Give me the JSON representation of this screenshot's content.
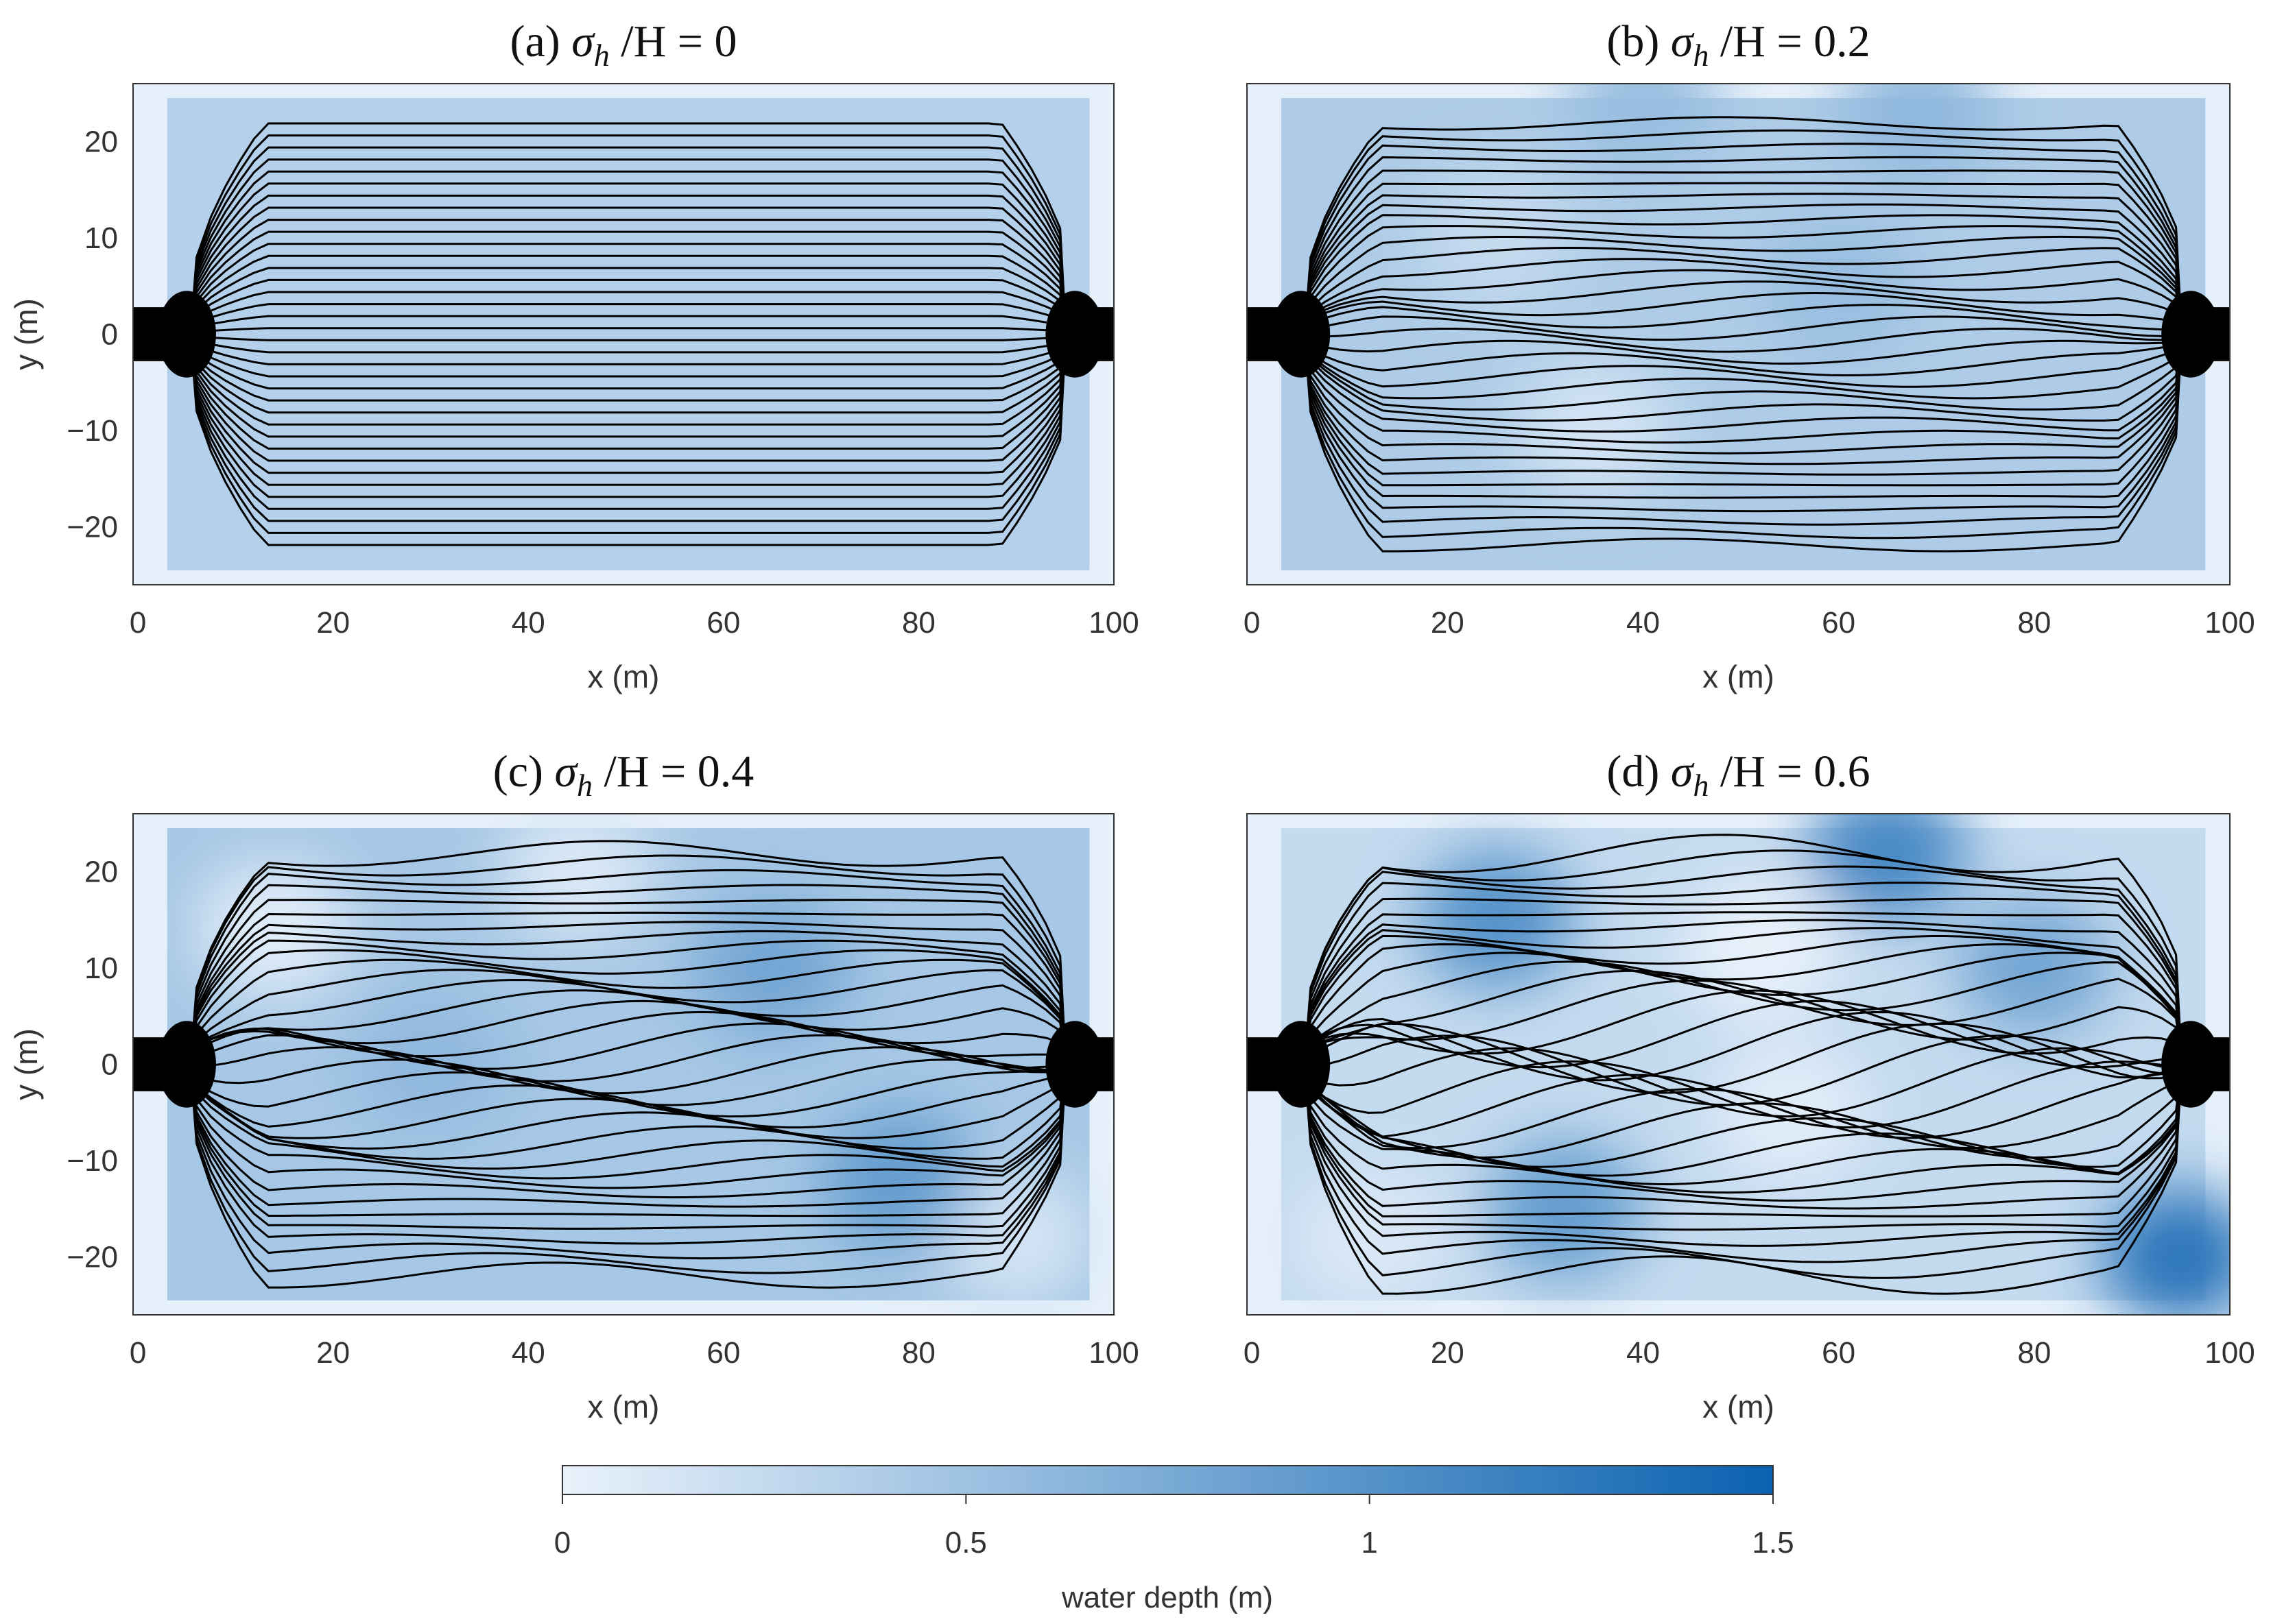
{
  "figure": {
    "colorbar": {
      "label": "water depth (m)",
      "ticks": [
        0,
        0.5,
        1,
        1.5
      ],
      "tick_labels": [
        "0",
        "0.5",
        "1",
        "1.5"
      ],
      "range": [
        0,
        1.5
      ],
      "colors": [
        "#e9f2fb",
        "#0b62b0"
      ]
    }
  },
  "chart_data": [
    {
      "type": "heatmap",
      "panel": "a",
      "title_prefix": "(a)",
      "title_symbol": "σ",
      "title_sub": "h",
      "title_suffix": "/H = 0",
      "sigma_h_over_H": 0,
      "xlabel": "x (m)",
      "ylabel": "y (m)",
      "xlim": [
        -0.5,
        100
      ],
      "ylim": [
        -26,
        26
      ],
      "xticks": [
        0,
        20,
        40,
        60,
        80,
        100
      ],
      "yticks": [
        20,
        10,
        0,
        -10,
        -20
      ],
      "xtick_labels": [
        "0",
        "20",
        "40",
        "60",
        "80",
        "100"
      ],
      "ytick_labels": [
        "20",
        "10",
        "0",
        "−10",
        "−20"
      ],
      "grid": false,
      "background_depth": 0.35,
      "depth_anomalies": [],
      "streamlines": "overlay"
    },
    {
      "type": "heatmap",
      "panel": "b",
      "title_prefix": "(b)",
      "title_symbol": "σ",
      "title_sub": "h",
      "title_suffix": "/H = 0.2",
      "sigma_h_over_H": 0.2,
      "xlabel": "x (m)",
      "ylabel": "",
      "xlim": [
        -0.5,
        100
      ],
      "ylim": [
        -26,
        26
      ],
      "xticks": [
        0,
        20,
        40,
        60,
        80,
        100
      ],
      "xtick_labels": [
        "0",
        "20",
        "40",
        "60",
        "80",
        "100"
      ],
      "grid": false,
      "background_depth": 0.4,
      "depth_anomalies": [
        {
          "x": 35,
          "y": -10,
          "d": 0.15
        },
        {
          "x": 60,
          "y": 5,
          "d": 0.55
        },
        {
          "x": 68,
          "y": 23,
          "d": 0.6
        },
        {
          "x": 40,
          "y": 24,
          "d": 0.55
        },
        {
          "x": 25,
          "y": 10,
          "d": 0.25
        }
      ],
      "streamlines": "overlay"
    },
    {
      "type": "heatmap",
      "panel": "c",
      "title_prefix": "(c)",
      "title_symbol": "σ",
      "title_sub": "h",
      "title_suffix": "/H = 0.4",
      "sigma_h_over_H": 0.4,
      "xlabel": "x (m)",
      "ylabel": "y (m)",
      "xlim": [
        -0.5,
        100
      ],
      "ylim": [
        -26,
        26
      ],
      "xticks": [
        0,
        20,
        40,
        60,
        80,
        100
      ],
      "yticks": [
        20,
        10,
        0,
        -10,
        -20
      ],
      "xtick_labels": [
        "0",
        "20",
        "40",
        "60",
        "80",
        "100"
      ],
      "ytick_labels": [
        "20",
        "10",
        "0",
        "−10",
        "−20"
      ],
      "grid": false,
      "background_depth": 0.45,
      "depth_anomalies": [
        {
          "x": 14,
          "y": 14,
          "d": 0.05
        },
        {
          "x": 45,
          "y": 20,
          "d": 0.1
        },
        {
          "x": 90,
          "y": -18,
          "d": 0.15
        },
        {
          "x": 78,
          "y": -12,
          "d": 0.9
        },
        {
          "x": 65,
          "y": 10,
          "d": 0.8
        },
        {
          "x": 30,
          "y": 0,
          "d": 0.6
        }
      ],
      "streamlines": "overlay"
    },
    {
      "type": "heatmap",
      "panel": "d",
      "title_prefix": "(d)",
      "title_symbol": "σ",
      "title_sub": "h",
      "title_suffix": "/H = 0.6",
      "sigma_h_over_H": 0.6,
      "xlabel": "x (m)",
      "ylabel": "",
      "xlim": [
        -0.5,
        100
      ],
      "ylim": [
        -26,
        26
      ],
      "xticks": [
        0,
        20,
        40,
        60,
        80,
        100
      ],
      "xtick_labels": [
        "0",
        "20",
        "40",
        "60",
        "80",
        "100"
      ],
      "grid": false,
      "background_depth": 0.25,
      "depth_anomalies": [
        {
          "x": 52,
          "y": 12,
          "d": 0.0
        },
        {
          "x": 55,
          "y": -5,
          "d": 0.05
        },
        {
          "x": 12,
          "y": -18,
          "d": 0.1
        },
        {
          "x": 25,
          "y": 15,
          "d": 1.0
        },
        {
          "x": 32,
          "y": -15,
          "d": 0.9
        },
        {
          "x": 80,
          "y": 10,
          "d": 0.8
        },
        {
          "x": 95,
          "y": -20,
          "d": 1.3
        },
        {
          "x": 65,
          "y": 22,
          "d": 1.1
        }
      ],
      "streamlines": "overlay"
    }
  ]
}
